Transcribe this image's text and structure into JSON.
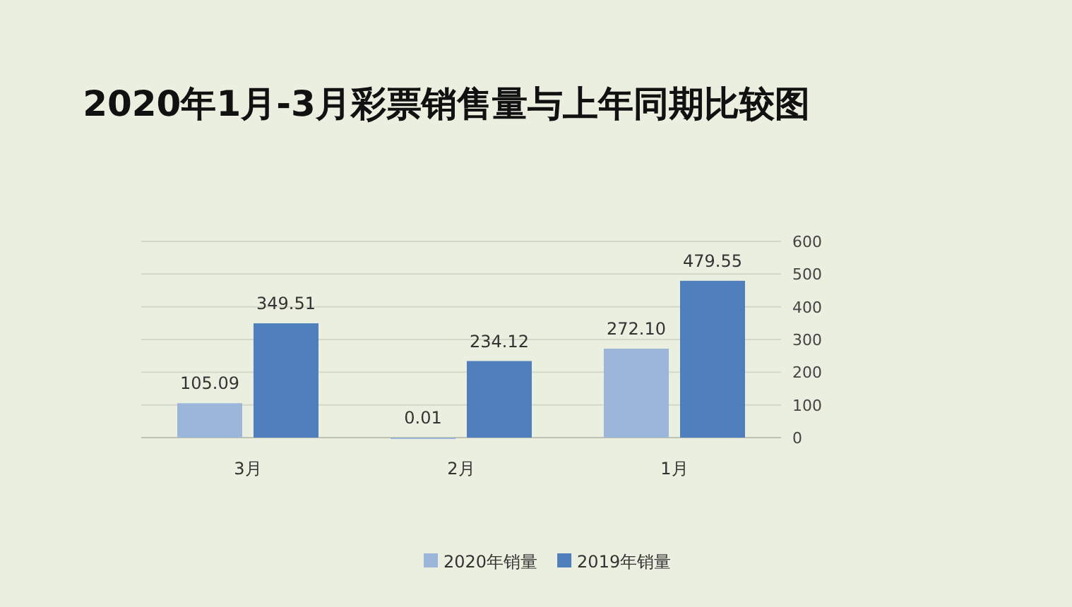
{
  "chart_data": {
    "type": "bar",
    "title": "2020年1月-3月彩票销售量与上年同期比较图",
    "categories": [
      "3月",
      "2月",
      "1月"
    ],
    "series": [
      {
        "name": "2020年销量",
        "color": "#9bb6d9",
        "values": [
          105.09,
          0.01,
          272.1
        ],
        "value_labels": [
          "105.09",
          "0.01",
          "272.10"
        ]
      },
      {
        "name": "2019年销量",
        "color": "#4f80bd",
        "values": [
          349.51,
          234.12,
          479.55
        ],
        "value_labels": [
          "349.51",
          "234.12",
          "479.55"
        ]
      }
    ],
    "ylim": [
      0,
      600
    ],
    "yticks": [
      0,
      100,
      200,
      300,
      400,
      500,
      600
    ],
    "grid": "y",
    "legend": "bottom"
  }
}
